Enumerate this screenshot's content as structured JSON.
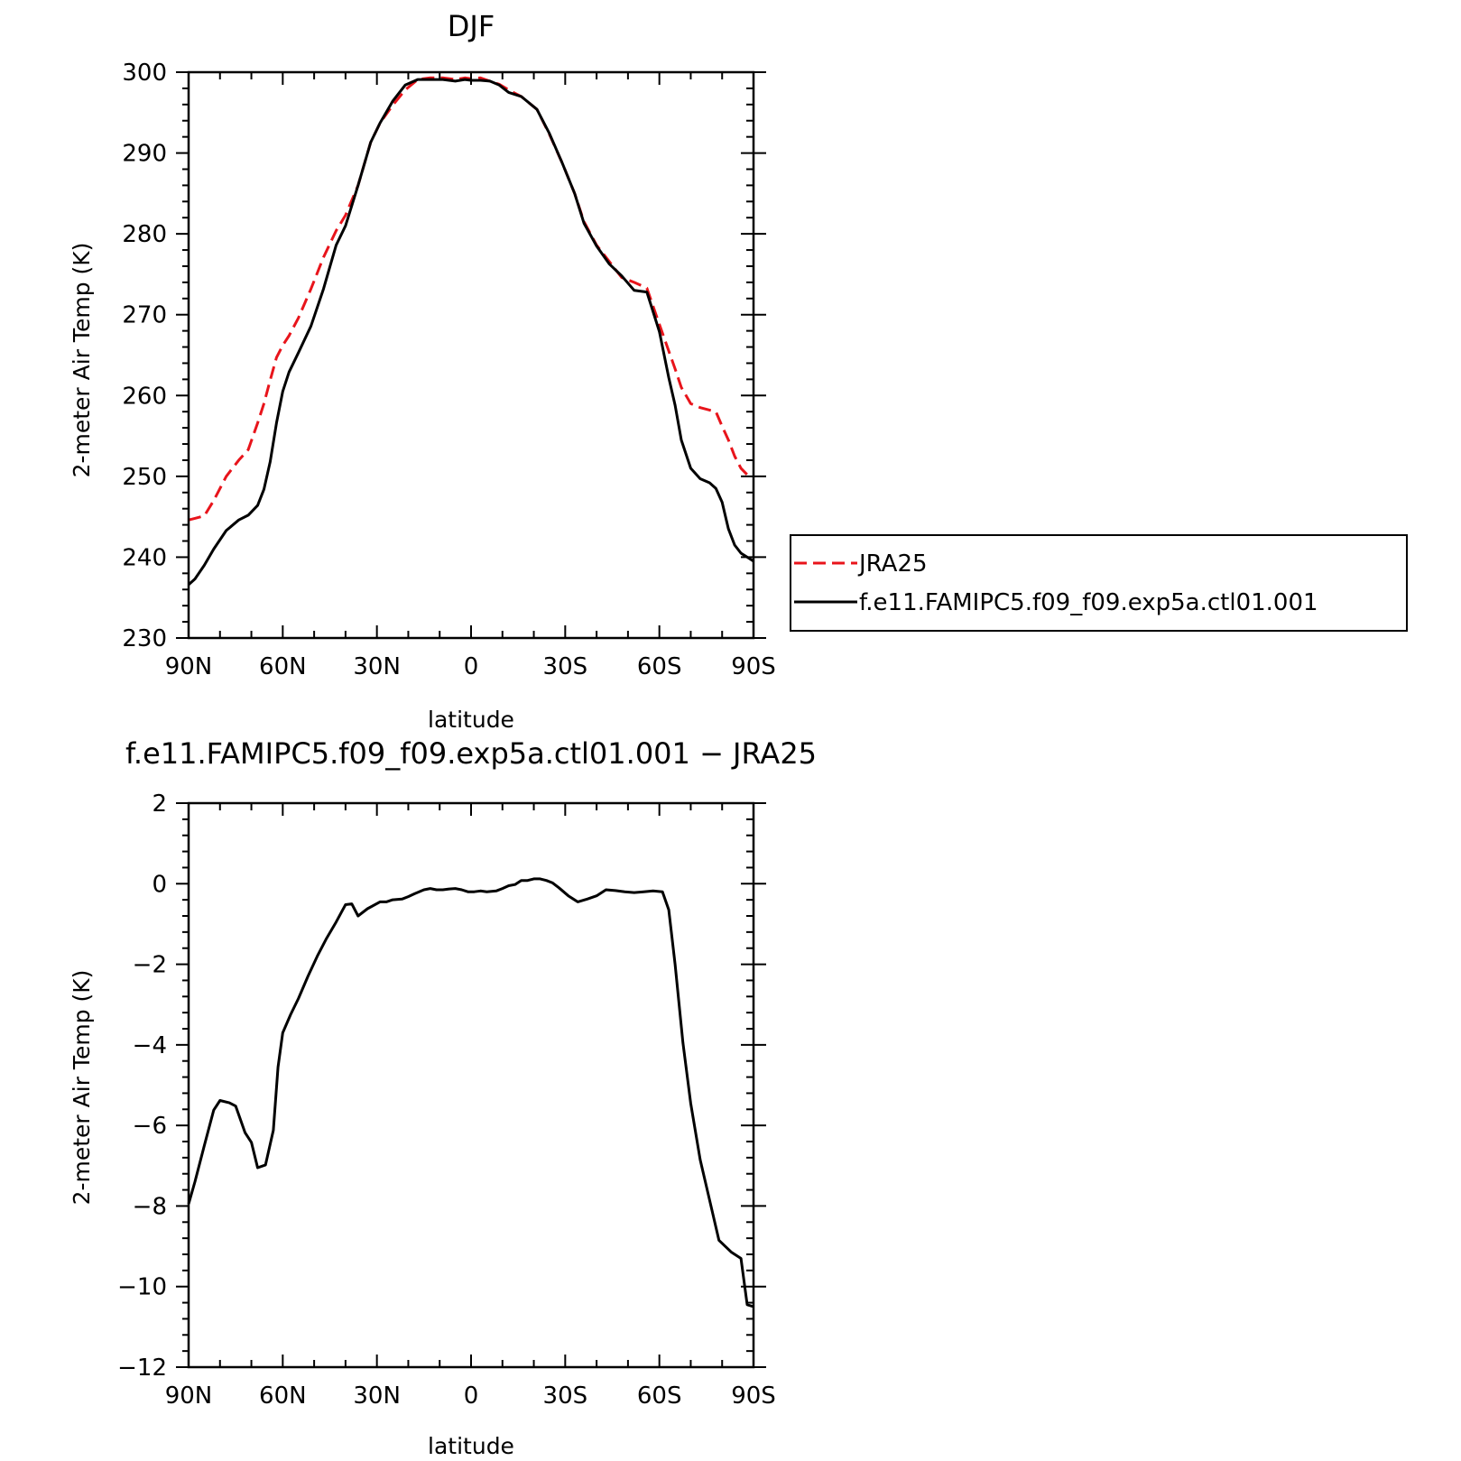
{
  "chart_data": [
    {
      "type": "line",
      "title": "DJF",
      "xlabel": "latitude",
      "ylabel": "2-meter Air Temp (K)",
      "xlim": [
        90,
        -90
      ],
      "ylim": [
        230,
        300
      ],
      "xticks": [
        90,
        60,
        30,
        0,
        -30,
        -60,
        -90
      ],
      "xtick_labels": [
        "90N",
        "60N",
        "30N",
        "0",
        "30S",
        "60S",
        "90S"
      ],
      "yticks": [
        230,
        240,
        250,
        260,
        270,
        280,
        290,
        300
      ],
      "ytick_labels": [
        "230",
        "240",
        "250",
        "260",
        "270",
        "280",
        "290",
        "300"
      ],
      "legend_position": "right",
      "series": [
        {
          "name": "JRA25",
          "color": "#e8141b",
          "dash": "dashed",
          "x": [
            90,
            88,
            85,
            82,
            78,
            74,
            71,
            68,
            66,
            64,
            62,
            60,
            58,
            55,
            51,
            47,
            43,
            40,
            36,
            32,
            29,
            25,
            21,
            17,
            13,
            9,
            5,
            2,
            0,
            -3,
            -6,
            -9,
            -12,
            -16,
            -21,
            -25,
            -29,
            -33,
            -36,
            -40,
            -44,
            -48,
            -52,
            -56,
            -60,
            -63,
            -65,
            -67,
            -70,
            -73,
            -76,
            -78,
            -80,
            -82,
            -84,
            -86,
            -88,
            -90
          ],
          "y": [
            244.6,
            244.8,
            245.1,
            247.0,
            250.0,
            252.0,
            253.3,
            256.6,
            259.0,
            261.9,
            264.7,
            266.2,
            267.4,
            269.6,
            273.2,
            277.1,
            280.4,
            282.3,
            286.0,
            291.3,
            293.7,
            295.9,
            297.8,
            299.1,
            299.3,
            299.3,
            299.1,
            299.3,
            299.2,
            299.3,
            298.9,
            298.5,
            297.8,
            297.0,
            295.4,
            292.3,
            288.8,
            285.0,
            281.5,
            278.6,
            276.6,
            274.6,
            274.0,
            273.3,
            268.8,
            265.5,
            263.3,
            261.0,
            259.0,
            258.5,
            258.2,
            258.0,
            256.2,
            254.5,
            252.5,
            251.0,
            250.2,
            250.0
          ]
        },
        {
          "name": "f.e11.FAMIPC5.f09_f09.exp5a.ctl01.001",
          "color": "#000000",
          "dash": "solid",
          "x": [
            90,
            88,
            85,
            82,
            78,
            74,
            71,
            68,
            66,
            64,
            62,
            60,
            58,
            55,
            51,
            47,
            43,
            40,
            36,
            32,
            29,
            25,
            21,
            17,
            13,
            9,
            5,
            2,
            0,
            -3,
            -6,
            -9,
            -12,
            -16,
            -21,
            -25,
            -29,
            -33,
            -36,
            -40,
            -44,
            -48,
            -52,
            -56,
            -60,
            -63,
            -65,
            -67,
            -70,
            -73,
            -76,
            -78,
            -80,
            -82,
            -84,
            -86,
            -88,
            -90
          ],
          "y": [
            236.6,
            237.3,
            239.0,
            241.0,
            243.3,
            244.6,
            245.2,
            246.4,
            248.4,
            251.8,
            256.6,
            260.5,
            262.9,
            265.3,
            268.6,
            273.2,
            278.6,
            281.0,
            286.0,
            291.3,
            293.7,
            296.4,
            298.4,
            299.1,
            299.1,
            299.1,
            298.9,
            299.1,
            299.0,
            299.0,
            298.9,
            298.4,
            297.5,
            297.0,
            295.4,
            292.4,
            288.8,
            285.0,
            281.3,
            278.5,
            276.3,
            274.8,
            273.0,
            272.8,
            267.9,
            262.2,
            258.8,
            254.5,
            251.0,
            249.7,
            249.2,
            248.5,
            246.8,
            243.5,
            241.5,
            240.5,
            240.0,
            239.5
          ]
        }
      ]
    },
    {
      "type": "line",
      "title": "f.e11.FAMIPC5.f09_f09.exp5a.ctl01.001 − JRA25",
      "xlabel": "latitude",
      "ylabel": "2-meter Air Temp (K)",
      "xlim": [
        90,
        -90
      ],
      "ylim": [
        -12,
        2
      ],
      "xticks": [
        90,
        60,
        30,
        0,
        -30,
        -60,
        -90
      ],
      "xtick_labels": [
        "90N",
        "60N",
        "30N",
        "0",
        "30S",
        "60S",
        "90S"
      ],
      "yticks": [
        -12,
        -10,
        -8,
        -6,
        -4,
        -2,
        0,
        2
      ],
      "ytick_labels": [
        "−12",
        "−10",
        "−8",
        "−6",
        "−4",
        "−2",
        "0",
        "2"
      ],
      "series": [
        {
          "name": "",
          "color": "#000000",
          "dash": "solid",
          "x": [
            90,
            88,
            85,
            82,
            80,
            77,
            75,
            72,
            70,
            68,
            65.5,
            63,
            61.5,
            60,
            57.5,
            55,
            52,
            49,
            46,
            43,
            40,
            38,
            36,
            33,
            29,
            27,
            25,
            22,
            20,
            18,
            15,
            13,
            11,
            9,
            7,
            5,
            3,
            1,
            -1,
            -3,
            -5,
            -8,
            -10,
            -12,
            -14,
            -16,
            -18,
            -20,
            -22,
            -24,
            -26,
            -28,
            -31,
            -34,
            -37,
            -40,
            -43,
            -46,
            -49,
            -52,
            -55,
            -58,
            -61,
            -63,
            -65,
            -67.5,
            -70,
            -73,
            -76,
            -79,
            -83,
            -86,
            -88,
            -90
          ],
          "y": [
            -7.95,
            -7.4,
            -6.5,
            -5.62,
            -5.38,
            -5.44,
            -5.52,
            -6.18,
            -6.42,
            -7.05,
            -6.98,
            -6.12,
            -4.55,
            -3.7,
            -3.25,
            -2.85,
            -2.3,
            -1.8,
            -1.35,
            -0.95,
            -0.52,
            -0.5,
            -0.8,
            -0.62,
            -0.45,
            -0.45,
            -0.4,
            -0.38,
            -0.32,
            -0.25,
            -0.15,
            -0.12,
            -0.15,
            -0.15,
            -0.13,
            -0.12,
            -0.15,
            -0.2,
            -0.2,
            -0.18,
            -0.2,
            -0.18,
            -0.12,
            -0.05,
            -0.02,
            0.08,
            0.08,
            0.12,
            0.12,
            0.08,
            0.02,
            -0.1,
            -0.3,
            -0.45,
            -0.38,
            -0.3,
            -0.15,
            -0.17,
            -0.2,
            -0.22,
            -0.2,
            -0.18,
            -0.2,
            -0.65,
            -2.0,
            -3.95,
            -5.45,
            -6.85,
            -7.85,
            -8.85,
            -9.15,
            -9.3,
            -10.45,
            -10.5
          ]
        }
      ]
    }
  ]
}
